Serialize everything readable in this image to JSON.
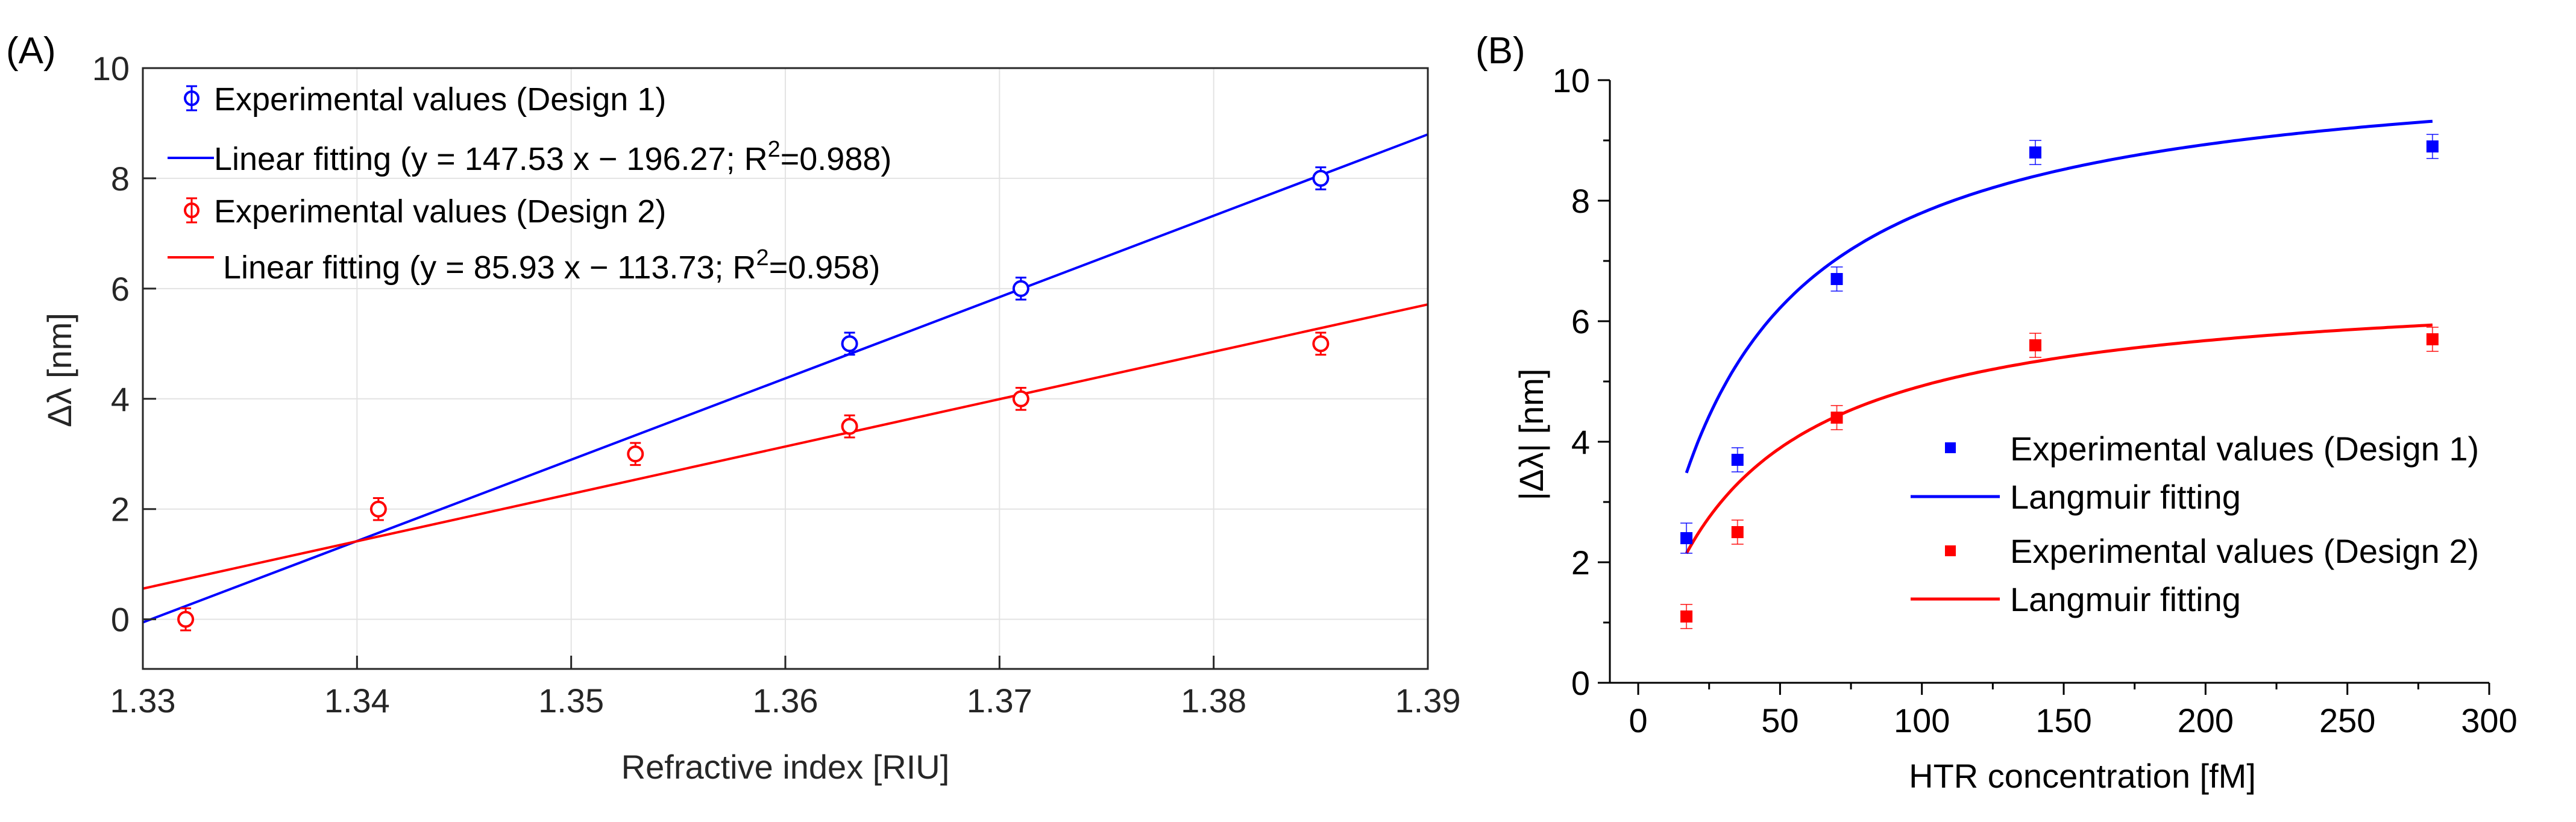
{
  "chart_data": [
    {
      "panel_label": "(A)",
      "type": "line",
      "xlabel": "Refractive index [RIU]",
      "ylabel": "Δλ [nm]",
      "xlim": [
        1.33,
        1.39
      ],
      "ylim": [
        -0.9,
        10
      ],
      "xticks": [
        1.33,
        1.34,
        1.35,
        1.36,
        1.37,
        1.38,
        1.39
      ],
      "xtick_labels": [
        "1.33",
        "1.34",
        "1.35",
        "1.36",
        "1.37",
        "1.38",
        "1.39"
      ],
      "yticks": [
        0,
        2,
        4,
        6,
        8,
        10
      ],
      "ytick_labels": [
        "0",
        "2",
        "4",
        "6",
        "8",
        "10"
      ],
      "grid": true,
      "legend_position": "top-left",
      "series": [
        {
          "name": "Experimental values (Design 1)",
          "kind": "points",
          "marker": "circle",
          "color": "#0000ff",
          "points": [
            {
              "x": 1.363,
              "y": 5.0,
              "err": 0.2
            },
            {
              "x": 1.371,
              "y": 6.0,
              "err": 0.2
            },
            {
              "x": 1.385,
              "y": 8.0,
              "err": 0.2
            }
          ]
        },
        {
          "name": "Linear fitting (y = 147.53 x − 196.27; R",
          "sup": "2",
          "name_tail": "=0.988)",
          "kind": "line",
          "color": "#0000ff",
          "slope": 147.53,
          "intercept": -196.27
        },
        {
          "name": "Experimental values (Design 2)",
          "kind": "points",
          "marker": "circle",
          "color": "#ff0000",
          "points": [
            {
              "x": 1.332,
              "y": 0.0,
              "err": 0.2
            },
            {
              "x": 1.341,
              "y": 2.0,
              "err": 0.2
            },
            {
              "x": 1.353,
              "y": 3.0,
              "err": 0.2
            },
            {
              "x": 1.363,
              "y": 3.5,
              "err": 0.2
            },
            {
              "x": 1.371,
              "y": 4.0,
              "err": 0.2
            },
            {
              "x": 1.385,
              "y": 5.0,
              "err": 0.2
            }
          ]
        },
        {
          "name": "Linear fitting (y = 85.93 x − 113.73; R",
          "sup": "2",
          "name_tail": "=0.958)",
          "kind": "line",
          "color": "#ff0000",
          "slope": 85.93,
          "intercept": -113.73
        }
      ]
    },
    {
      "panel_label": "(B)",
      "type": "line",
      "xlabel": "HTR concentration [fM]",
      "ylabel": "|Δλ| [nm]",
      "xlim": [
        -10,
        300
      ],
      "ylim": [
        0,
        10
      ],
      "xticks": [
        0,
        50,
        100,
        150,
        200,
        250,
        300
      ],
      "xtick_labels": [
        "0",
        "50",
        "100",
        "150",
        "200",
        "250",
        "300"
      ],
      "yticks": [
        0,
        2,
        4,
        6,
        8,
        10
      ],
      "ytick_labels": [
        "0",
        "2",
        "4",
        "6",
        "8",
        "10"
      ],
      "grid": false,
      "legend_position": "right",
      "series": [
        {
          "name": "Experimental values (Design 1)",
          "kind": "points",
          "marker": "square",
          "color": "#0000ff",
          "points": [
            {
              "x": 17,
              "y": 2.4,
              "err": 0.25
            },
            {
              "x": 35,
              "y": 3.7,
              "err": 0.2
            },
            {
              "x": 70,
              "y": 6.7,
              "err": 0.2
            },
            {
              "x": 140,
              "y": 8.8,
              "err": 0.2
            },
            {
              "x": 280,
              "y": 8.9,
              "err": 0.2
            }
          ]
        },
        {
          "name": "Langmuir fitting",
          "kind": "curve",
          "color": "#0000ff",
          "model": "langmuir",
          "vmax": 10.45,
          "kd": 34,
          "x_range": [
            17,
            280
          ]
        },
        {
          "name": "Experimental values (Design 2)",
          "kind": "points",
          "marker": "square",
          "color": "#ff0000",
          "points": [
            {
              "x": 17,
              "y": 1.1,
              "err": 0.2
            },
            {
              "x": 35,
              "y": 2.5,
              "err": 0.2
            },
            {
              "x": 70,
              "y": 4.4,
              "err": 0.2
            },
            {
              "x": 140,
              "y": 5.6,
              "err": 0.2
            },
            {
              "x": 280,
              "y": 5.7,
              "err": 0.2
            }
          ]
        },
        {
          "name": "Langmuir fitting",
          "kind": "curve",
          "color": "#ff0000",
          "model": "langmuir",
          "vmax": 6.7,
          "kd": 36,
          "x_range": [
            17,
            280
          ]
        }
      ]
    }
  ]
}
